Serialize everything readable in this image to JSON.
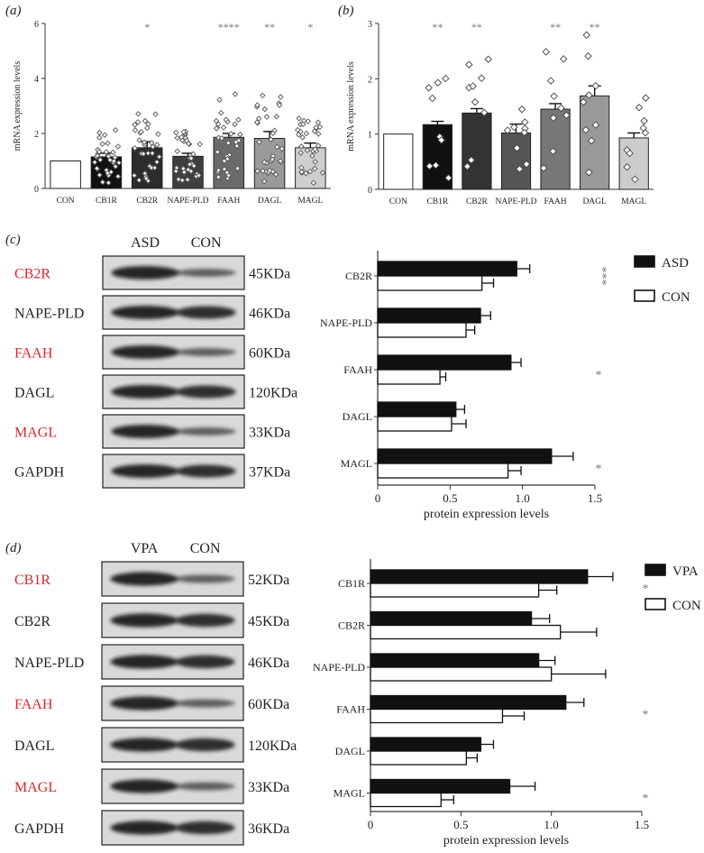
{
  "panels": {
    "a": "(a)",
    "b": "(b)",
    "c": "(c)",
    "d": "(d)"
  },
  "chart_data": [
    {
      "id": "a",
      "type": "bar",
      "ylabel": "mRNA expression levels",
      "ylim": [
        0,
        6
      ],
      "yticks": [
        0,
        2,
        4,
        6
      ],
      "categories": [
        "CON",
        "CB1R",
        "CB2R",
        "NAPE-PLD",
        "FAAH",
        "DAGL",
        "MAGL"
      ],
      "values": [
        1.0,
        1.15,
        1.48,
        1.17,
        1.86,
        1.82,
        1.48
      ],
      "errors": [
        0,
        0.13,
        0.22,
        0.11,
        0.14,
        0.25,
        0.17
      ],
      "significance": [
        "",
        "",
        "*",
        "",
        "****",
        "**",
        "*"
      ],
      "bar_colors": [
        "#ffffff",
        "#111111",
        "#2c2c2c",
        "#3f3f3f",
        "#6b6b6b",
        "#9a9a9a",
        "#cfcfcf"
      ]
    },
    {
      "id": "b",
      "type": "bar",
      "ylabel": "mRNA expression levels",
      "ylim": [
        0,
        3
      ],
      "yticks": [
        0,
        1,
        2,
        3
      ],
      "categories": [
        "CON",
        "CB1R",
        "CB2R",
        "NAPE-PLD",
        "FAAH",
        "DAGL",
        "MAGL"
      ],
      "values": [
        1.0,
        1.17,
        1.38,
        1.02,
        1.45,
        1.69,
        0.93
      ],
      "errors": [
        0,
        0.06,
        0.08,
        0.16,
        0.1,
        0.18,
        0.09
      ],
      "significance": [
        "",
        "**",
        "**",
        "",
        "**",
        "**",
        ""
      ],
      "bar_colors": [
        "#ffffff",
        "#111111",
        "#333333",
        "#555555",
        "#777777",
        "#999999",
        "#cccccc"
      ]
    },
    {
      "id": "c",
      "type": "bar",
      "orientation": "horizontal",
      "xlabel": "protein expression levels",
      "xlim": [
        0,
        1.5
      ],
      "xticks": [
        "0",
        "0.5",
        "1.0",
        "1.5"
      ],
      "categories": [
        "CB2R",
        "NAPE-PLD",
        "FAAH",
        "DAGL",
        "MAGL"
      ],
      "series": [
        {
          "name": "ASD",
          "values": [
            0.96,
            0.71,
            0.92,
            0.54,
            1.2
          ],
          "errors": [
            0.09,
            0.07,
            0.07,
            0.06,
            0.15
          ],
          "color": "#111111"
        },
        {
          "name": "CON",
          "values": [
            0.72,
            0.61,
            0.43,
            0.51,
            0.9
          ],
          "errors": [
            0.08,
            0.06,
            0.04,
            0.1,
            0.09
          ],
          "color": "#ffffff"
        }
      ],
      "significance": [
        "***",
        "",
        "*",
        "",
        "*"
      ],
      "legend": "right"
    },
    {
      "id": "d",
      "type": "bar",
      "orientation": "horizontal",
      "xlabel": "protein expression levels",
      "xlim": [
        0,
        1.5
      ],
      "xticks": [
        "0",
        "0.5",
        "1.0",
        "1.5"
      ],
      "categories": [
        "CB1R",
        "CB2R",
        "NAPE-PLD",
        "FAAH",
        "DAGL",
        "MAGL"
      ],
      "series": [
        {
          "name": "VPA",
          "values": [
            1.2,
            0.89,
            0.93,
            1.08,
            0.61,
            0.77
          ],
          "errors": [
            0.14,
            0.1,
            0.09,
            0.1,
            0.07,
            0.14
          ],
          "color": "#111111"
        },
        {
          "name": "CON",
          "values": [
            0.93,
            1.05,
            1.0,
            0.73,
            0.53,
            0.39
          ],
          "errors": [
            0.1,
            0.2,
            0.3,
            0.12,
            0.06,
            0.07
          ],
          "color": "#ffffff"
        }
      ],
      "significance": [
        "*",
        "",
        "",
        "*",
        "",
        "*"
      ],
      "legend": "right"
    }
  ],
  "blots": {
    "c": {
      "columns": [
        "ASD",
        "CON"
      ],
      "rows": [
        {
          "protein": "CB2R",
          "weight": "45KDa",
          "highlight": true
        },
        {
          "protein": "NAPE-PLD",
          "weight": "46KDa",
          "highlight": false
        },
        {
          "protein": "FAAH",
          "weight": "60KDa",
          "highlight": true
        },
        {
          "protein": "DAGL",
          "weight": "120KDa",
          "highlight": false
        },
        {
          "protein": "MAGL",
          "weight": "33KDa",
          "highlight": true
        },
        {
          "protein": "GAPDH",
          "weight": "37KDa",
          "highlight": false
        }
      ]
    },
    "d": {
      "columns": [
        "VPA",
        "CON"
      ],
      "rows": [
        {
          "protein": "CB1R",
          "weight": "52KDa",
          "highlight": true
        },
        {
          "protein": "CB2R",
          "weight": "45KDa",
          "highlight": false
        },
        {
          "protein": "NAPE-PLD",
          "weight": "46KDa",
          "highlight": false
        },
        {
          "protein": "FAAH",
          "weight": "60KDa",
          "highlight": true
        },
        {
          "protein": "DAGL",
          "weight": "120KDa",
          "highlight": false
        },
        {
          "protein": "MAGL",
          "weight": "33KDa",
          "highlight": true
        },
        {
          "protein": "GAPDH",
          "weight": "36KDa",
          "highlight": false
        }
      ]
    }
  },
  "colors": {
    "highlight": "#d9262c",
    "text": "#222222"
  }
}
